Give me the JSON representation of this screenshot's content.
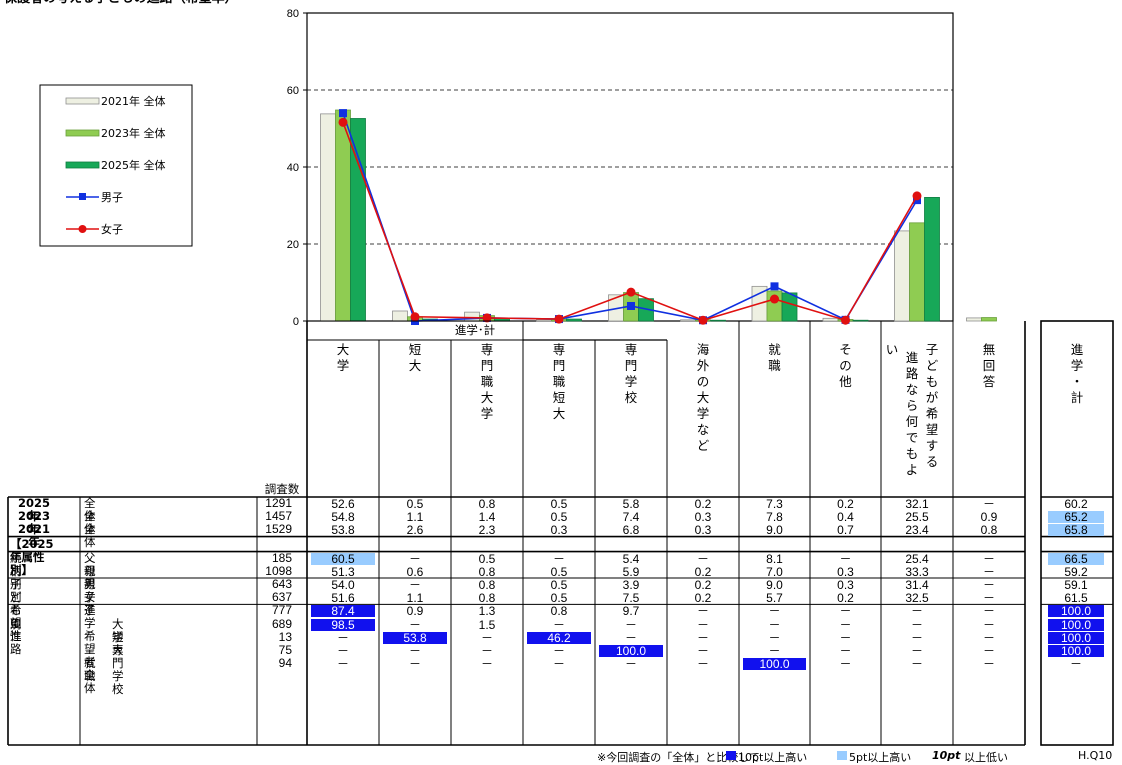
{
  "header_text": "保護者の考える子どもの進路（希望率）",
  "survey_count_label": "調査数",
  "group_label": "進学･計",
  "attr_heading": "【2025年属性別】",
  "legend": [
    {
      "label": "2021年 全体",
      "kind": "bar",
      "color": "#eef0e2"
    },
    {
      "label": "2023年 全体",
      "kind": "bar",
      "color": "#8fcc52"
    },
    {
      "label": "2025年 全体",
      "kind": "bar",
      "color": "#17a858"
    },
    {
      "label": "男子",
      "kind": "line",
      "color": "#1030e0"
    },
    {
      "label": "女子",
      "kind": "line",
      "color": "#e01010"
    }
  ],
  "columns": [
    {
      "label": "大学"
    },
    {
      "label": "短大"
    },
    {
      "label": "専門職大学"
    },
    {
      "label": "専門職短大"
    },
    {
      "label": "専門学校"
    },
    {
      "label": "海外の大学など"
    },
    {
      "label": "就職"
    },
    {
      "label": "その他"
    },
    {
      "label": "子どもが希望する進路なら何でもよい"
    },
    {
      "label": "無回答"
    }
  ],
  "total_column_label": "進学・計",
  "chart_data": {
    "type": "bar",
    "categories": [
      "大学",
      "短大",
      "専門職大学",
      "専門職短大",
      "専門学校",
      "海外の大学など",
      "就職",
      "その他",
      "子どもが希望する進路なら何でもよい",
      "無回答"
    ],
    "ylim": [
      0,
      80
    ],
    "yticks": [
      0,
      20,
      40,
      60,
      80
    ],
    "grid": true,
    "legend_position": "left",
    "series": [
      {
        "name": "2021年 全体",
        "kind": "bar",
        "values": [
          53.8,
          2.6,
          2.3,
          0.3,
          6.8,
          0.3,
          9.0,
          0.7,
          23.4,
          0.8
        ]
      },
      {
        "name": "2023年 全体",
        "kind": "bar",
        "values": [
          54.8,
          1.1,
          1.4,
          0.5,
          7.4,
          0.3,
          7.8,
          0.4,
          25.5,
          0.9
        ]
      },
      {
        "name": "2025年 全体",
        "kind": "bar",
        "values": [
          52.6,
          0.5,
          0.8,
          0.5,
          5.8,
          0.2,
          7.3,
          0.2,
          32.1,
          0
        ]
      },
      {
        "name": "男子",
        "kind": "line",
        "values": [
          54.0,
          0,
          0.8,
          0.5,
          3.9,
          0.2,
          9.0,
          0.3,
          31.4,
          0
        ]
      },
      {
        "name": "女子",
        "kind": "line",
        "values": [
          51.6,
          1.1,
          0.8,
          0.5,
          7.5,
          0.2,
          5.7,
          0.2,
          32.5,
          0
        ]
      }
    ]
  },
  "rows": [
    {
      "year": "2025年",
      "label": "全体",
      "n": "1291",
      "values": [
        "52.6",
        "0.5",
        "0.8",
        "0.5",
        "5.8",
        "0.2",
        "7.3",
        "0.2",
        "32.1",
        "－"
      ],
      "total": "60.2",
      "marks": [],
      "total_mark": ""
    },
    {
      "year": "2023年",
      "label": "全体",
      "n": "1457",
      "values": [
        "54.8",
        "1.1",
        "1.4",
        "0.5",
        "7.4",
        "0.3",
        "7.8",
        "0.4",
        "25.5",
        "0.9"
      ],
      "total": "65.2",
      "marks": [],
      "total_mark": "light"
    },
    {
      "year": "2021年",
      "label": "全体",
      "n": "1529",
      "values": [
        "53.8",
        "2.6",
        "2.3",
        "0.3",
        "6.8",
        "0.3",
        "9.0",
        "0.7",
        "23.4",
        "0.8"
      ],
      "total": "65.8",
      "marks": [],
      "total_mark": "light"
    },
    {
      "group": "続柄別",
      "label": "父親",
      "n": "185",
      "values": [
        "60.5",
        "－",
        "0.5",
        "－",
        "5.4",
        "－",
        "8.1",
        "－",
        "25.4",
        "－"
      ],
      "total": "66.5",
      "marks": [
        [
          0,
          "light"
        ]
      ],
      "total_mark": "light"
    },
    {
      "group": "",
      "label": "母親",
      "n": "1098",
      "values": [
        "51.3",
        "0.6",
        "0.8",
        "0.5",
        "5.9",
        "0.2",
        "7.0",
        "0.3",
        "33.3",
        "－"
      ],
      "total": "59.2",
      "marks": [],
      "total_mark": ""
    },
    {
      "group": "子どもの性",
      "label": "男子",
      "n": "643",
      "values": [
        "54.0",
        "－",
        "0.8",
        "0.5",
        "3.9",
        "0.2",
        "9.0",
        "0.3",
        "31.4",
        "－"
      ],
      "total": "59.1",
      "marks": [],
      "total_mark": ""
    },
    {
      "group": "別",
      "label": "女子",
      "n": "637",
      "values": [
        "51.6",
        "1.1",
        "0.8",
        "0.5",
        "7.5",
        "0.2",
        "5.7",
        "0.2",
        "32.5",
        "－"
      ],
      "total": "61.5",
      "marks": [],
      "total_mark": ""
    },
    {
      "group": "希望進路",
      "label": "進学希望者全体",
      "n": "777",
      "values": [
        "87.4",
        "0.9",
        "1.3",
        "0.8",
        "9.7",
        "－",
        "－",
        "－",
        "－",
        "－"
      ],
      "total": "100.0",
      "marks": [
        [
          0,
          "dark"
        ]
      ],
      "total_mark": "dark"
    },
    {
      "group": "別",
      "label": "大学",
      "n": "689",
      "indent": true,
      "values": [
        "98.5",
        "－",
        "1.5",
        "－",
        "－",
        "－",
        "－",
        "－",
        "－",
        "－"
      ],
      "total": "100.0",
      "marks": [
        [
          0,
          "dark"
        ]
      ],
      "total_mark": "dark"
    },
    {
      "group": "",
      "label": "短大",
      "n": "13",
      "indent": true,
      "values": [
        "－",
        "53.8",
        "－",
        "46.2",
        "－",
        "－",
        "－",
        "－",
        "－",
        "－"
      ],
      "total": "100.0",
      "marks": [
        [
          1,
          "dark"
        ],
        [
          3,
          "dark"
        ]
      ],
      "total_mark": "dark"
    },
    {
      "group": "",
      "label": "専門学校",
      "n": "75",
      "indent": true,
      "values": [
        "－",
        "－",
        "－",
        "－",
        "100.0",
        "－",
        "－",
        "－",
        "－",
        "－"
      ],
      "total": "100.0",
      "marks": [
        [
          4,
          "dark"
        ]
      ],
      "total_mark": "dark"
    },
    {
      "group": "",
      "label": "就職",
      "n": "94",
      "values": [
        "－",
        "－",
        "－",
        "－",
        "－",
        "－",
        "100.0",
        "－",
        "－",
        "－"
      ],
      "total": "－",
      "marks": [
        [
          6,
          "dark"
        ]
      ],
      "total_mark": ""
    }
  ],
  "footnote": {
    "prefix": "※今回調査の「全体」と比較して",
    "dark_label": "10pt以上高い",
    "light_label": "5pt以上高い",
    "low_bold": "10pt",
    "low_label": "以上低い",
    "code": "H.Q10"
  },
  "colors": {
    "mark_dark": "#1111ee",
    "mark_light": "#99ccff"
  }
}
